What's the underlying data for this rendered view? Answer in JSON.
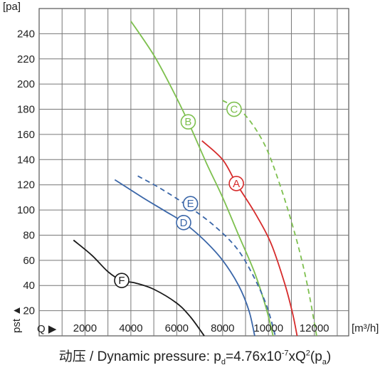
{
  "chart_data": {
    "type": "line",
    "y_unit": "[pa]",
    "x_unit": "[m³/h]",
    "y_axis_marker": "pst ▲",
    "x_axis_marker": "Q ▶",
    "xlim": [
      0,
      13500
    ],
    "ylim": [
      0,
      260
    ],
    "x_ticks": [
      "2000",
      "4000",
      "6000",
      "8000",
      "10000",
      "12000"
    ],
    "y_ticks": [
      "20",
      "40",
      "60",
      "80",
      "100",
      "120",
      "140",
      "160",
      "180",
      "200",
      "220",
      "240"
    ],
    "grid": true,
    "series": [
      {
        "name": "A",
        "color": "#d62b2b",
        "dashed": false,
        "points": [
          [
            7100,
            155
          ],
          [
            8000,
            140
          ],
          [
            8600,
            121
          ],
          [
            9400,
            98
          ],
          [
            10100,
            74
          ],
          [
            10700,
            42
          ],
          [
            11050,
            18
          ],
          [
            11250,
            0
          ]
        ],
        "label_at": [
          8600,
          121
        ]
      },
      {
        "name": "B",
        "color": "#7ec04f",
        "dashed": false,
        "points": [
          [
            4000,
            250
          ],
          [
            5000,
            223
          ],
          [
            5800,
            196
          ],
          [
            6500,
            170
          ],
          [
            7300,
            137
          ],
          [
            8000,
            110
          ],
          [
            8700,
            80
          ],
          [
            9400,
            50
          ],
          [
            9900,
            22
          ],
          [
            10200,
            0
          ]
        ],
        "label_at": [
          6500,
          170
        ]
      },
      {
        "name": "C",
        "color": "#7ec04f",
        "dashed": true,
        "points": [
          [
            8000,
            187
          ],
          [
            8900,
            177
          ],
          [
            9800,
            153
          ],
          [
            10500,
            120
          ],
          [
            11200,
            78
          ],
          [
            11700,
            40
          ],
          [
            12100,
            0
          ]
        ],
        "label_at": [
          8500,
          180
        ]
      },
      {
        "name": "D",
        "color": "#3a66a8",
        "dashed": false,
        "points": [
          [
            3300,
            124
          ],
          [
            4500,
            110
          ],
          [
            5500,
            99
          ],
          [
            6300,
            90
          ],
          [
            7200,
            76
          ],
          [
            8000,
            60
          ],
          [
            8700,
            40
          ],
          [
            9150,
            20
          ],
          [
            9400,
            0
          ]
        ],
        "label_at": [
          6300,
          90
        ]
      },
      {
        "name": "E",
        "color": "#3a66a8",
        "dashed": true,
        "points": [
          [
            4300,
            127
          ],
          [
            5300,
            117
          ],
          [
            6500,
            103
          ],
          [
            7600,
            88
          ],
          [
            8600,
            70
          ],
          [
            9300,
            49
          ],
          [
            9900,
            25
          ],
          [
            10300,
            0
          ]
        ],
        "label_at": [
          6600,
          105
        ]
      },
      {
        "name": "F",
        "color": "#1a1a1a",
        "dashed": false,
        "points": [
          [
            1500,
            76
          ],
          [
            2300,
            64
          ],
          [
            3000,
            51
          ],
          [
            3600,
            44
          ],
          [
            4200,
            42
          ],
          [
            5000,
            37
          ],
          [
            6000,
            26
          ],
          [
            6600,
            15
          ],
          [
            7200,
            0
          ]
        ],
        "label_at": [
          3600,
          44
        ]
      }
    ]
  },
  "footer": {
    "text_before": "动压 / Dynamic pressure:  p",
    "sub_d": "d",
    "text_mid": "=4.76x10",
    "sup_exp": "-7",
    "text_mid2": "xQ",
    "sup_sq": "2",
    "text_mid3": "(p",
    "sub_a": "a",
    "text_end": ")"
  }
}
